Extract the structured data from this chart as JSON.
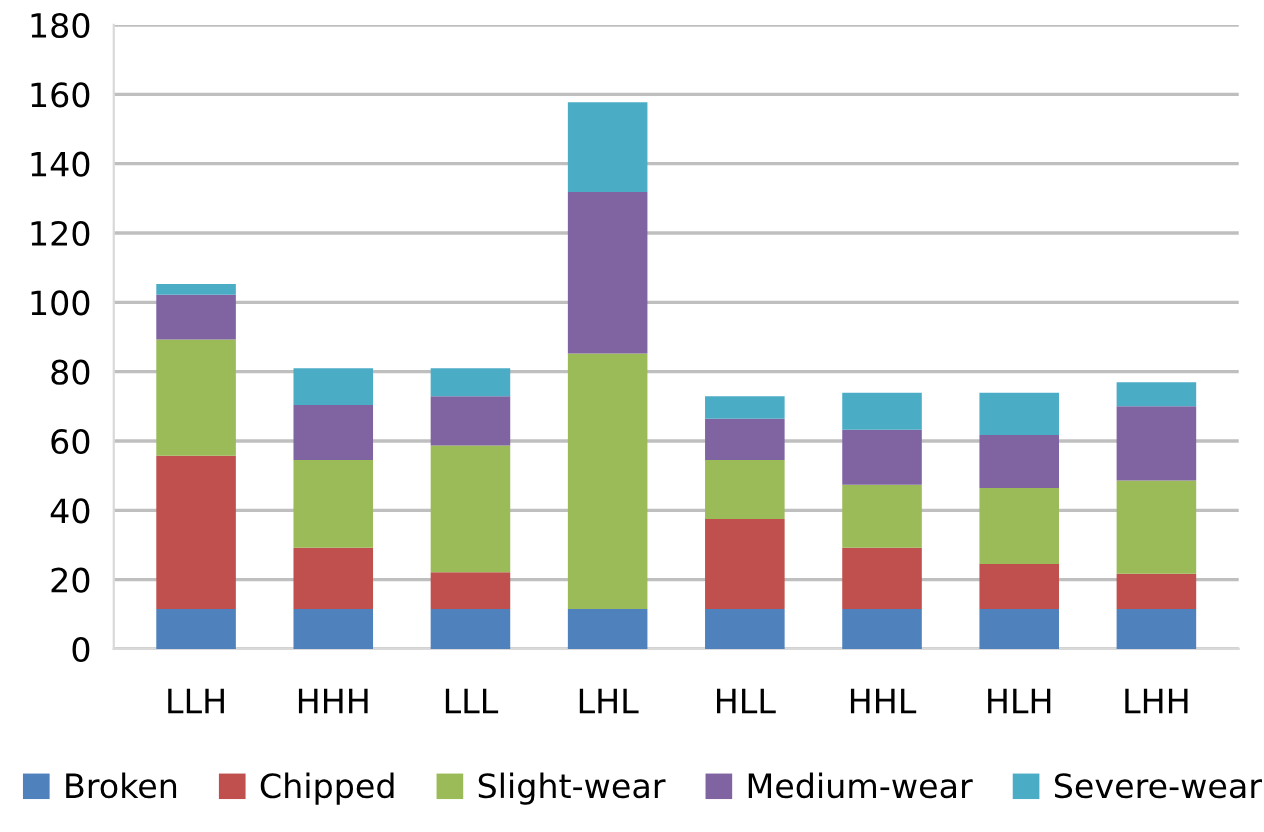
{
  "chart_data": {
    "type": "bar",
    "stacked": true,
    "categories": [
      "LLH",
      "HHH",
      "LLL",
      "LHL",
      "HLL",
      "HHL",
      "HLH",
      "LHH"
    ],
    "series": [
      {
        "name": "Broken",
        "color": "#4f81bd",
        "values": [
          11.5,
          11.5,
          11.5,
          11.5,
          11.5,
          11.5,
          11.5,
          11.5
        ]
      },
      {
        "name": "Chipped",
        "color": "#c0504d",
        "values": [
          44.2,
          17.7,
          10.6,
          0,
          26,
          17.7,
          13,
          10.2
        ]
      },
      {
        "name": "Slight-wear",
        "color": "#9bbb59",
        "values": [
          33.6,
          25.3,
          36.6,
          73.7,
          17,
          18.2,
          21.9,
          26.9
        ]
      },
      {
        "name": "Medium-wear",
        "color": "#8064a2",
        "values": [
          12.9,
          15.9,
          14.2,
          46.6,
          11.9,
          15.8,
          15.3,
          21.4
        ]
      },
      {
        "name": "Severe-wear",
        "color": "#4bacc6",
        "values": [
          3.1,
          10.6,
          8.1,
          25.9,
          6.5,
          10.7,
          12.2,
          6.9
        ]
      }
    ],
    "ylim": [
      0,
      180
    ],
    "yticks": [
      0,
      20,
      40,
      60,
      80,
      100,
      120,
      140,
      160,
      180
    ],
    "grid": "y",
    "legend": "bottom"
  }
}
